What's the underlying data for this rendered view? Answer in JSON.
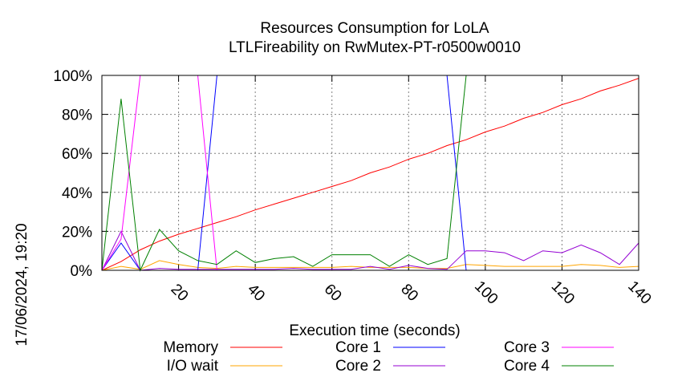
{
  "chart_data": {
    "type": "line",
    "title": "Resources Consumption for LoLA",
    "subtitle": "LTLFireability on RwMutex-PT-r0500w0010",
    "xlabel": "Execution time (seconds)",
    "ylabel": "",
    "xlim": [
      0,
      140
    ],
    "ylim": [
      0,
      100
    ],
    "x_ticks": [
      20,
      40,
      60,
      80,
      100,
      120,
      140
    ],
    "y_ticks": [
      0,
      20,
      40,
      60,
      80,
      100
    ],
    "x_tick_labels": [
      "20",
      "40",
      "60",
      "80",
      "100",
      "120",
      "140"
    ],
    "y_tick_labels": [
      "0%",
      "20%",
      "40%",
      "60%",
      "80%",
      "100%"
    ],
    "grid": true,
    "legend_position": "bottom",
    "timestamp": "17/06/2024, 19:20",
    "series": [
      {
        "name": "Memory",
        "color": "#ff0000",
        "x": [
          0,
          5,
          10,
          15,
          20,
          25,
          30,
          35,
          40,
          45,
          50,
          55,
          60,
          65,
          70,
          75,
          80,
          85,
          90,
          95,
          100,
          105,
          110,
          115,
          120,
          125,
          130,
          135,
          140
        ],
        "y": [
          0,
          4.5,
          10.5,
          15,
          18.5,
          21.5,
          24.5,
          27.5,
          31,
          34,
          37,
          40,
          43,
          46,
          50,
          53,
          57,
          60,
          64,
          67,
          71,
          74,
          78,
          81,
          85,
          88,
          92,
          95,
          98.5
        ]
      },
      {
        "name": "I/O wait",
        "color": "#ffa500",
        "x": [
          0,
          5,
          10,
          15,
          20,
          25,
          30,
          35,
          40,
          45,
          50,
          55,
          60,
          65,
          70,
          75,
          80,
          85,
          90,
          95,
          100,
          105,
          110,
          115,
          120,
          125,
          130,
          135,
          140
        ],
        "y": [
          0,
          2,
          0.5,
          5,
          3,
          1.5,
          1,
          2,
          1.5,
          1.5,
          1.5,
          1.5,
          1.5,
          2,
          1.5,
          1.5,
          1.5,
          1,
          1,
          3,
          2.5,
          2,
          2,
          2,
          2,
          3,
          2.5,
          1.5,
          2
        ]
      },
      {
        "name": "Core 1",
        "color": "#0000ff",
        "x": [
          0,
          5,
          10,
          15,
          20,
          25,
          30,
          35,
          40,
          45,
          50,
          55,
          60,
          65,
          70,
          75,
          80,
          85,
          90,
          95,
          100,
          105,
          110,
          115,
          120,
          125,
          130,
          135,
          140
        ],
        "y": [
          0,
          14,
          0,
          0,
          0,
          0,
          100,
          100,
          100,
          100,
          100,
          100,
          100,
          100,
          100,
          100,
          100,
          100,
          100,
          0,
          0,
          0,
          0,
          0,
          0,
          0,
          0,
          0,
          0
        ]
      },
      {
        "name": "Core 2",
        "color": "#9400d3",
        "x": [
          0,
          5,
          10,
          15,
          20,
          25,
          30,
          35,
          40,
          45,
          50,
          55,
          60,
          65,
          70,
          75,
          80,
          85,
          90,
          95,
          100,
          105,
          110,
          115,
          120,
          125,
          130,
          135,
          140
        ],
        "y": [
          0,
          20,
          0,
          1,
          0.5,
          0.5,
          0.5,
          0.5,
          0.5,
          0.5,
          1,
          0.5,
          0.5,
          0.5,
          2,
          0.5,
          2.5,
          1,
          0.5,
          10,
          10,
          9,
          5,
          10,
          9,
          13,
          9,
          3,
          14
        ]
      },
      {
        "name": "Core 3",
        "color": "#ff00ff",
        "x": [
          0,
          5,
          10,
          15,
          20,
          25,
          30,
          35,
          40,
          45,
          50,
          55,
          60,
          65,
          70,
          75,
          80,
          85,
          90,
          95,
          100,
          105,
          110,
          115,
          120,
          125,
          130,
          135,
          140
        ],
        "y": [
          0,
          16,
          100,
          100,
          100,
          100,
          0,
          0,
          0,
          0,
          0,
          0,
          0,
          0,
          0,
          0,
          0,
          0,
          0,
          0,
          0,
          0,
          0,
          0,
          0,
          0,
          0,
          0,
          0
        ]
      },
      {
        "name": "Core 4",
        "color": "#008000",
        "x": [
          0,
          5,
          10,
          15,
          20,
          25,
          30,
          35,
          40,
          45,
          50,
          55,
          60,
          65,
          70,
          75,
          80,
          85,
          90,
          95,
          100,
          105,
          110,
          115,
          120,
          125,
          130,
          135,
          140
        ],
        "y": [
          0,
          88,
          0,
          21,
          10,
          5,
          3,
          10,
          4,
          6,
          7,
          2,
          8,
          8,
          8,
          2,
          8,
          3,
          6,
          100,
          100,
          100,
          100,
          100,
          100,
          100,
          100,
          100,
          100
        ]
      }
    ]
  }
}
